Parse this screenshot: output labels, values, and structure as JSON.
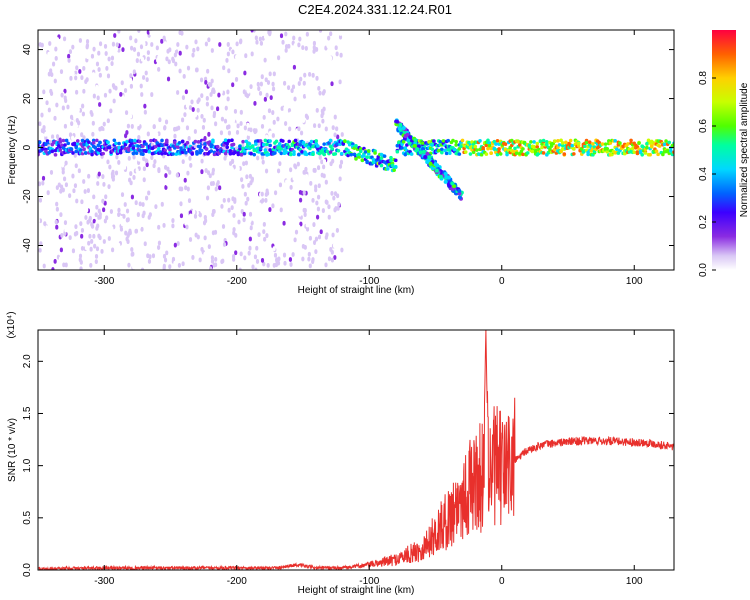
{
  "title": "C2E4.2024.331.12.24.R01",
  "chart_data": [
    {
      "type": "heatmap",
      "xlabel": "Height of straight line (km)",
      "ylabel": "Frequency (Hz)",
      "xlim": [
        -350,
        130
      ],
      "ylim": [
        -50,
        48
      ],
      "xticks": [
        "-300",
        "-200",
        "-100",
        "0",
        "100"
      ],
      "yticks": [
        "-40",
        "-20",
        "0",
        "20",
        "40"
      ],
      "colorbar": {
        "label": "Normalized spectral amplitude",
        "range": [
          0,
          1
        ],
        "ticks": [
          "0.0",
          "0.2",
          "0.4",
          "0.6",
          "0.8"
        ]
      },
      "colorscale": [
        "#ffffff",
        "#d9c6f5",
        "#8a2be2",
        "#3c00ff",
        "#0064ff",
        "#00d8ff",
        "#00ffa0",
        "#50ff00",
        "#c8ff00",
        "#ffd000",
        "#ff6000",
        "#ff0040"
      ],
      "features": [
        {
          "name": "scattered noise",
          "x_range": [
            -350,
            -120
          ],
          "f_range": [
            -50,
            48
          ]
        },
        {
          "name": "main band",
          "x_range": [
            -350,
            130
          ],
          "f_center": 0
        },
        {
          "name": "descending branch",
          "x_range": [
            -80,
            -30
          ],
          "f_range": [
            -20,
            10
          ]
        }
      ],
      "grid": false
    },
    {
      "type": "line",
      "xlabel": "Height of straight line (km)",
      "ylabel": "SNR (10 * v/v)",
      "y_multiplier": "(x10⁴)",
      "xlim": [
        -350,
        130
      ],
      "ylim": [
        0,
        2.3
      ],
      "xticks": [
        "-300",
        "-200",
        "-100",
        "0",
        "100"
      ],
      "yticks": [
        "0.0",
        "0.5",
        "1.0",
        "1.5",
        "2.0"
      ],
      "color": "#e8302c",
      "grid": false,
      "x": [
        -350,
        -300,
        -250,
        -200,
        -170,
        -155,
        -140,
        -120,
        -100,
        -80,
        -60,
        -50,
        -40,
        -30,
        -20,
        -14,
        -12,
        -10,
        -5,
        0,
        10,
        20,
        30,
        50,
        70,
        90,
        110,
        130
      ],
      "y": [
        0.01,
        0.02,
        0.02,
        0.02,
        0.02,
        0.05,
        0.02,
        0.02,
        0.05,
        0.1,
        0.2,
        0.35,
        0.5,
        0.7,
        0.85,
        0.9,
        2.3,
        0.9,
        1.0,
        0.95,
        1.05,
        1.15,
        1.2,
        1.23,
        1.24,
        1.23,
        1.22,
        1.18
      ]
    }
  ]
}
